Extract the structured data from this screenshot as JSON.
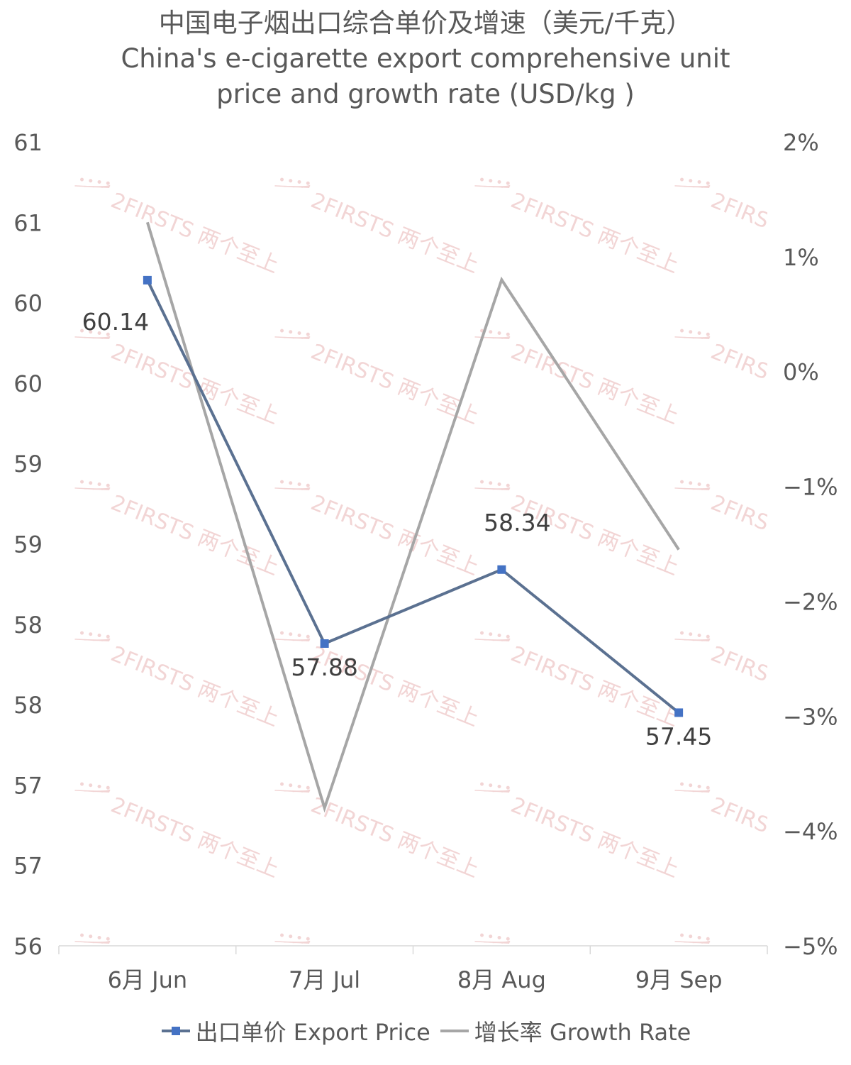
{
  "chart_data": {
    "type": "line",
    "title": "中国电子烟出口综合单价及增速（美元/千克）",
    "subtitle_lines": [
      "China's e-cigarette export comprehensive unit",
      "price and growth rate (USD/kg )"
    ],
    "categories": [
      "6月 Jun",
      "7月 Jul",
      "8月 Aug",
      "9月 Sep"
    ],
    "series": [
      {
        "name": "出口单价 Export Price",
        "axis": "left",
        "color": "#5B7191",
        "marker_color": "#4472C4",
        "values": [
          60.14,
          57.88,
          58.34,
          57.45
        ],
        "data_labels": [
          "60.14",
          "57.88",
          "58.34",
          "57.45"
        ]
      },
      {
        "name": "增长率 Growth Rate",
        "axis": "right",
        "color": "#A6A6A6",
        "values": [
          1.3,
          -3.8,
          0.8,
          -1.55
        ],
        "data_labels": []
      }
    ],
    "y_left": {
      "ylim": [
        56,
        61
      ],
      "tick_values": [
        56,
        56.5,
        57,
        57.5,
        58,
        58.5,
        59,
        59.5,
        60,
        60.5,
        61
      ],
      "tick_labels": [
        "56",
        "57",
        "57",
        "58",
        "58",
        "59",
        "59",
        "60",
        "60",
        "61"
      ],
      "tick_label_values": [
        56,
        56.5,
        57,
        57.5,
        58,
        58.5,
        59,
        59.5,
        60,
        60.5
      ]
    },
    "y_right": {
      "ylim": [
        -5,
        2
      ],
      "tick_values": [
        -5,
        -4,
        -3,
        -2,
        -1,
        0,
        1,
        2
      ],
      "tick_labels": [
        "−5%",
        "−4%",
        "−3%",
        "−2%",
        "−1%",
        "0%",
        "1%",
        "2%"
      ]
    },
    "grid": false,
    "legend_position": "bottom"
  },
  "watermark": {
    "text": "2FIRSTS",
    "cn_text": "两个至上",
    "color": "#E8B4B4"
  }
}
